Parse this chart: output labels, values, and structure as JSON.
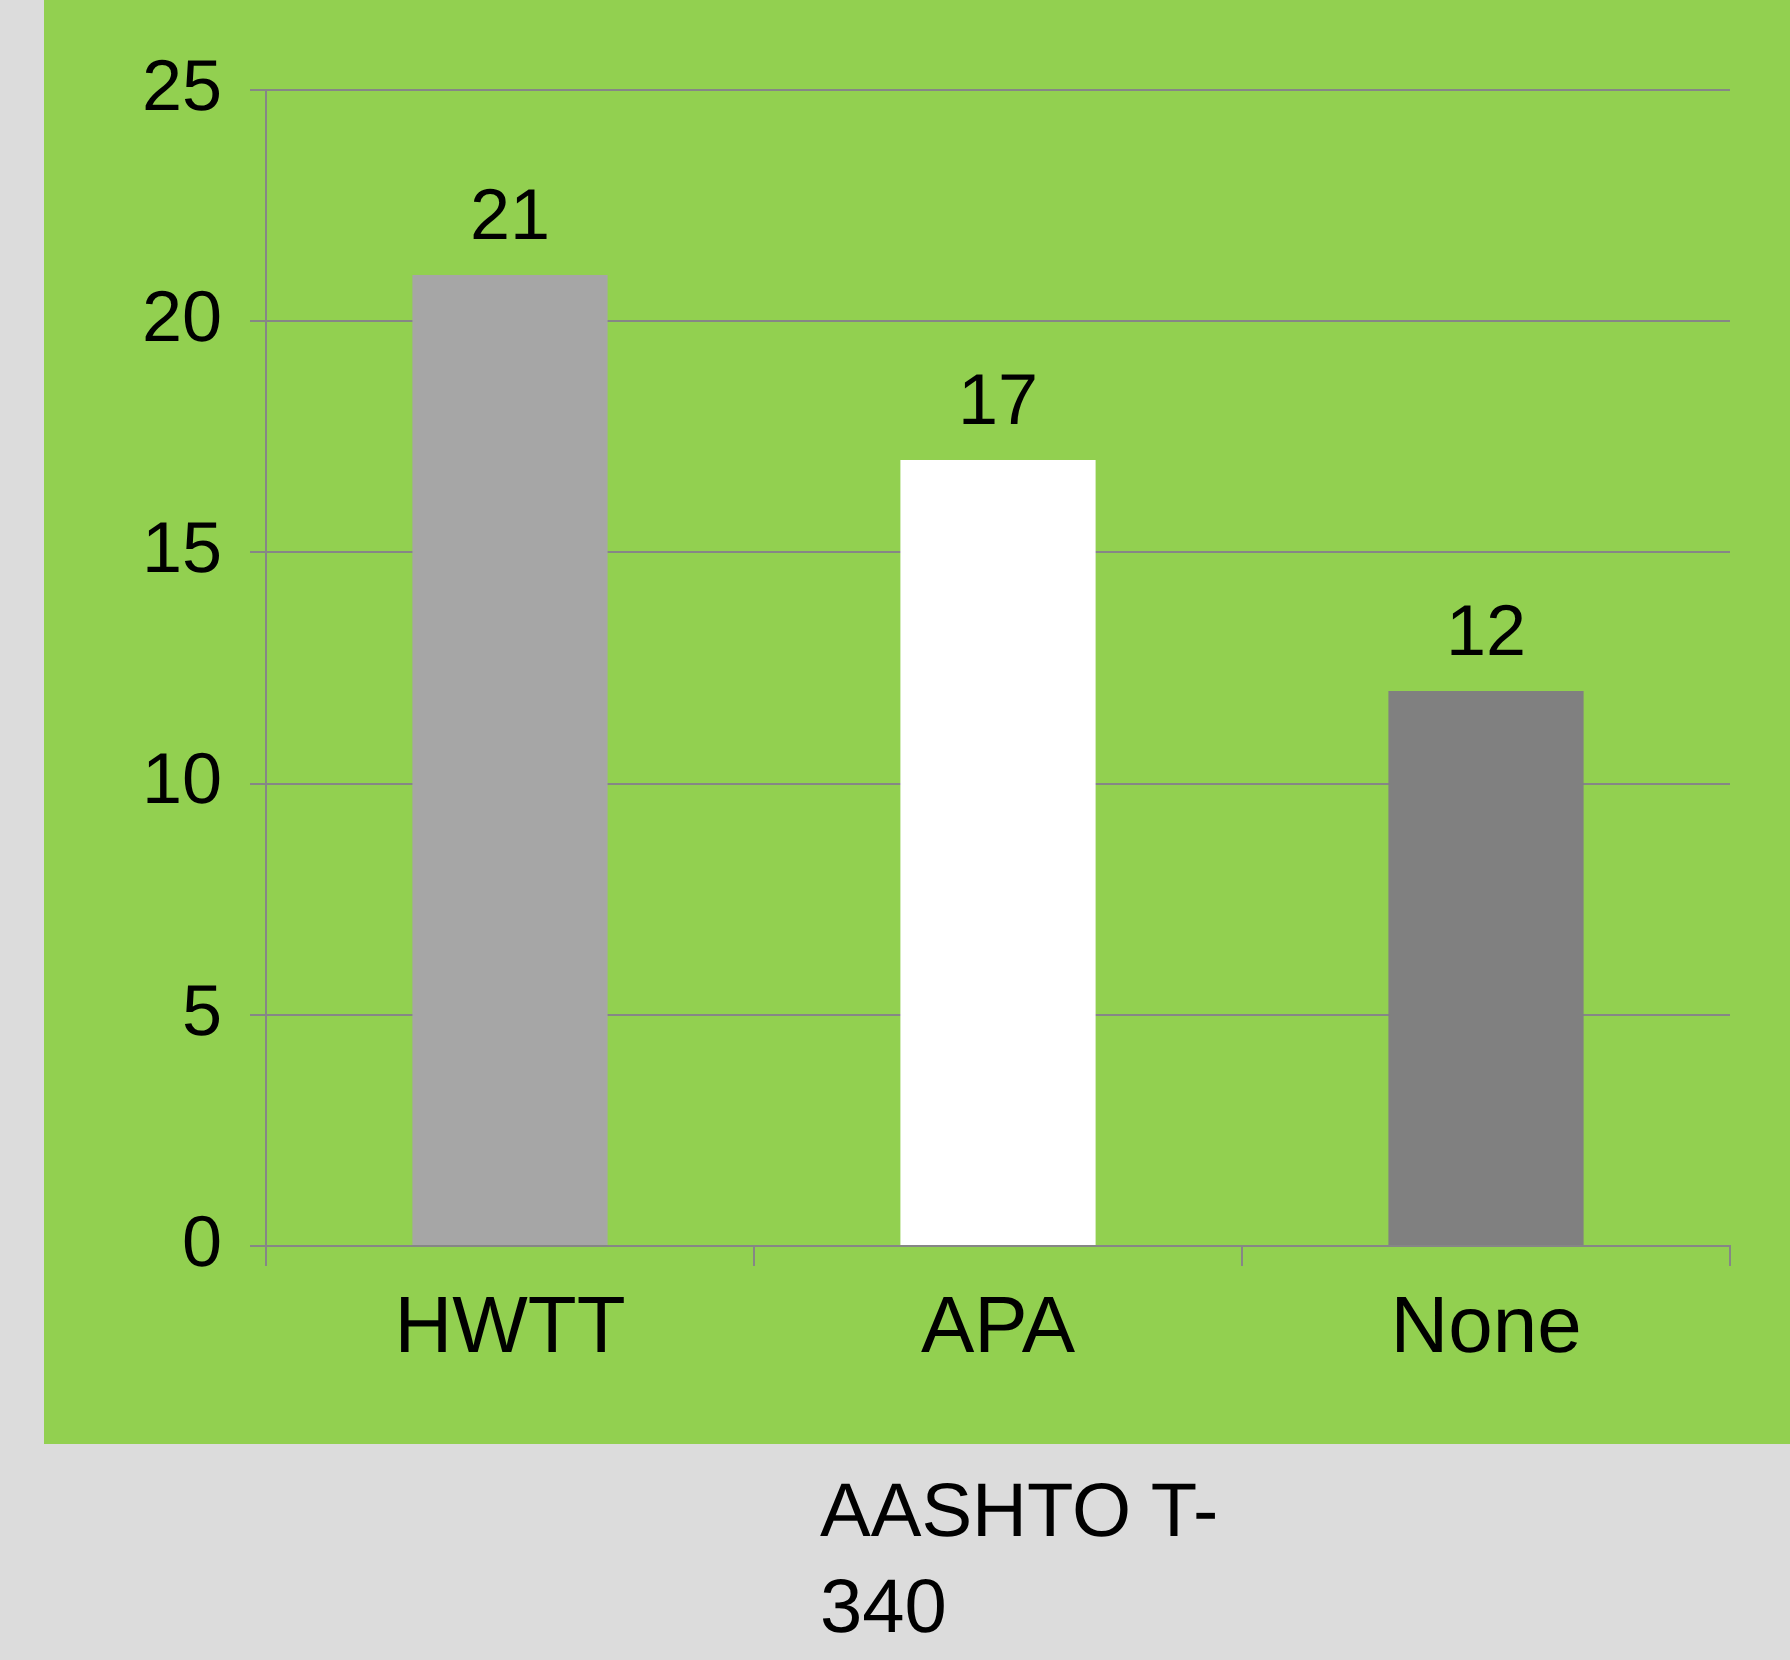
{
  "chart_data": {
    "type": "bar",
    "categories": [
      "HWTT",
      "APA",
      "None"
    ],
    "values": [
      21,
      17,
      12
    ],
    "colors": [
      "#a6a6a6",
      "#ffffff",
      "#808080"
    ],
    "ylim": [
      0,
      25
    ],
    "yticks": [
      0,
      5,
      10,
      15,
      20,
      25
    ],
    "grid": "y",
    "legend": false,
    "data_labels": true,
    "annotations": [
      "AASHTO T-340"
    ]
  }
}
